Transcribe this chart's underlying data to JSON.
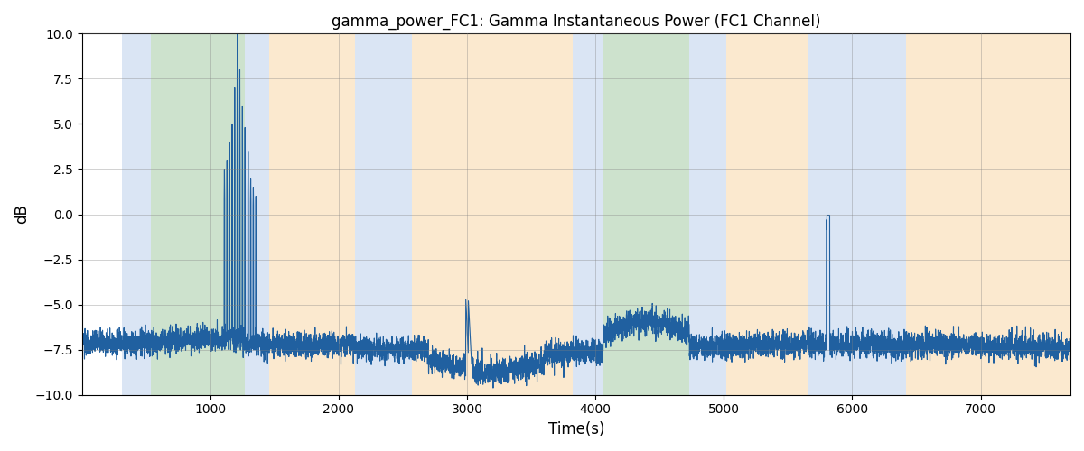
{
  "title": "gamma_power_FC1: Gamma Instantaneous Power (FC1 Channel)",
  "xlabel": "Time(s)",
  "ylabel": "dB",
  "ylim": [
    -10.0,
    10.0
  ],
  "xlim": [
    0,
    7700
  ],
  "yticks": [
    -10.0,
    -7.5,
    -5.0,
    -2.5,
    0.0,
    2.5,
    5.0,
    7.5,
    10.0
  ],
  "xticks": [
    1000,
    2000,
    3000,
    4000,
    5000,
    6000,
    7000
  ],
  "line_color": "#2060a0",
  "line_width": 0.8,
  "figsize": [
    12.0,
    5.0
  ],
  "dpi": 100,
  "background_regions": [
    {
      "xmin": 310,
      "xmax": 540,
      "color": "#aec6e8",
      "alpha": 0.45
    },
    {
      "xmin": 540,
      "xmax": 1270,
      "color": "#90c090",
      "alpha": 0.45
    },
    {
      "xmin": 1270,
      "xmax": 1460,
      "color": "#aec6e8",
      "alpha": 0.45
    },
    {
      "xmin": 1460,
      "xmax": 2130,
      "color": "#f5c078",
      "alpha": 0.35
    },
    {
      "xmin": 2130,
      "xmax": 2570,
      "color": "#aec6e8",
      "alpha": 0.45
    },
    {
      "xmin": 2570,
      "xmax": 3820,
      "color": "#f5c078",
      "alpha": 0.35
    },
    {
      "xmin": 3820,
      "xmax": 4060,
      "color": "#aec6e8",
      "alpha": 0.45
    },
    {
      "xmin": 4060,
      "xmax": 4730,
      "color": "#90c090",
      "alpha": 0.45
    },
    {
      "xmin": 4730,
      "xmax": 5020,
      "color": "#aec6e8",
      "alpha": 0.45
    },
    {
      "xmin": 5020,
      "xmax": 5650,
      "color": "#f5c078",
      "alpha": 0.35
    },
    {
      "xmin": 5650,
      "xmax": 6420,
      "color": "#aec6e8",
      "alpha": 0.45
    },
    {
      "xmin": 6420,
      "xmax": 7700,
      "color": "#f5c078",
      "alpha": 0.35
    }
  ],
  "base_level": -7.3,
  "noise_std": 0.35,
  "seed": 0
}
